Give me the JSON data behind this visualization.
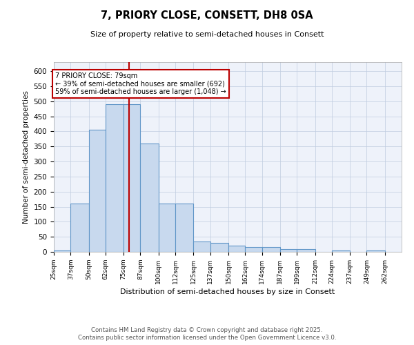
{
  "title1": "7, PRIORY CLOSE, CONSETT, DH8 0SA",
  "title2": "Size of property relative to semi-detached houses in Consett",
  "xlabel": "Distribution of semi-detached houses by size in Consett",
  "ylabel": "Number of semi-detached properties",
  "property_size": 79,
  "annotation_title": "7 PRIORY CLOSE: 79sqm",
  "annotation_line1": "← 39% of semi-detached houses are smaller (692)",
  "annotation_line2": "59% of semi-detached houses are larger (1,048) →",
  "bar_color": "#c8d9ee",
  "bar_edge_color": "#6096c8",
  "highlight_color": "#bb0000",
  "bg_color": "#eef2fa",
  "grid_color": "#c0cce0",
  "bins": [
    25,
    37,
    50,
    62,
    75,
    87,
    100,
    112,
    125,
    137,
    150,
    162,
    174,
    187,
    199,
    212,
    224,
    237,
    249,
    262,
    274
  ],
  "counts": [
    5,
    160,
    405,
    490,
    490,
    360,
    160,
    160,
    35,
    30,
    20,
    15,
    15,
    10,
    10,
    0,
    5,
    0,
    5,
    0
  ],
  "ylim": [
    0,
    630
  ],
  "yticks": [
    0,
    50,
    100,
    150,
    200,
    250,
    300,
    350,
    400,
    450,
    500,
    550,
    600
  ],
  "footer1": "Contains HM Land Registry data © Crown copyright and database right 2025.",
  "footer2": "Contains public sector information licensed under the Open Government Licence v3.0."
}
